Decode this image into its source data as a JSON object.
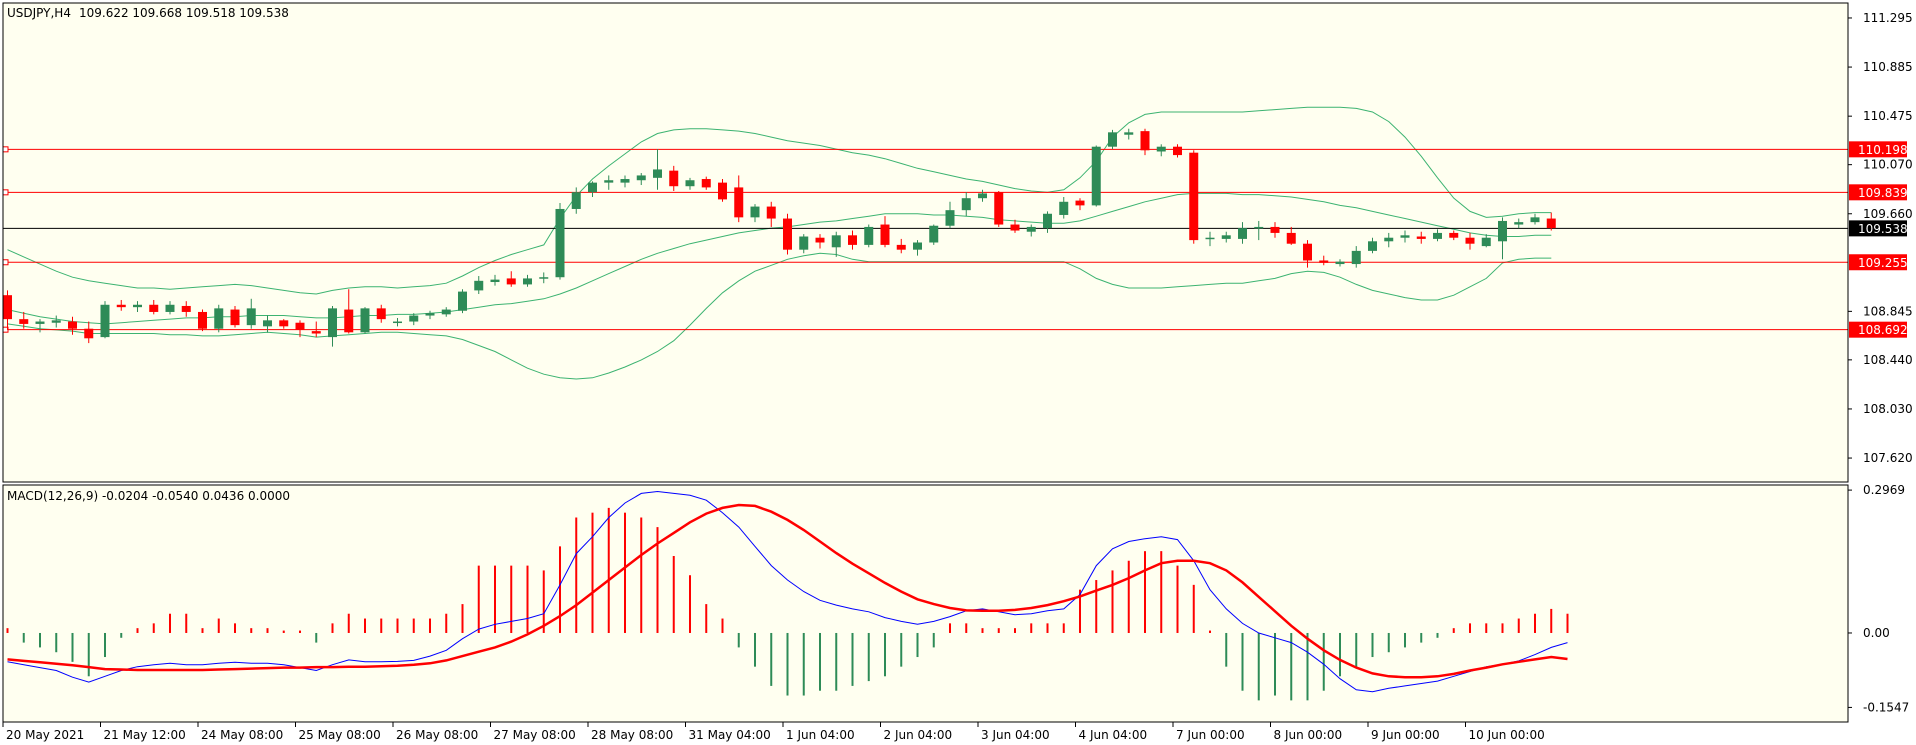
{
  "colors": {
    "background": "#fffff0",
    "frame": "#000000",
    "bull": "#2e8b57",
    "bear": "#ff0000",
    "bands": "#3cb371",
    "level_line": "#ff0000",
    "price_line": "#000000",
    "macd_main": "#0000ff",
    "macd_signal": "#ff0000"
  },
  "chart_data": [
    {
      "type": "candlestick",
      "title": "USDJPY,H4",
      "ohlc_header": "109.622 109.668 109.518 109.538",
      "ylim": [
        107.42,
        111.42
      ],
      "y_ticks": [
        "111.295",
        "110.885",
        "110.475",
        "110.070",
        "109.660",
        "108.845",
        "108.440",
        "108.030",
        "107.620"
      ],
      "current_price": "109.538",
      "horizontal_levels": [
        "110.198",
        "109.839",
        "109.255",
        "108.692"
      ],
      "x_labels": [
        "20 May 2021",
        "21 May 12:00",
        "24 May 08:00",
        "25 May 08:00",
        "26 May 08:00",
        "27 May 08:00",
        "28 May 08:00",
        "31 May 04:00",
        "1 Jun 04:00",
        "2 Jun 04:00",
        "3 Jun 04:00",
        "4 Jun 04:00",
        "7 Jun 00:00",
        "8 Jun 00:00",
        "9 Jun 00:00",
        "10 Jun 00:00"
      ],
      "candles": [
        [
          108.98,
          109.02,
          108.69,
          108.78
        ],
        [
          108.78,
          108.84,
          108.7,
          108.74
        ],
        [
          108.74,
          108.78,
          108.67,
          108.76
        ],
        [
          108.75,
          108.81,
          108.71,
          108.77
        ],
        [
          108.76,
          108.8,
          108.65,
          108.7
        ],
        [
          108.7,
          108.76,
          108.58,
          108.62
        ],
        [
          108.63,
          108.93,
          108.62,
          108.9
        ],
        [
          108.9,
          108.94,
          108.85,
          108.88
        ],
        [
          108.88,
          108.93,
          108.84,
          108.9
        ],
        [
          108.9,
          108.94,
          108.82,
          108.84
        ],
        [
          108.84,
          108.93,
          108.82,
          108.9
        ],
        [
          108.89,
          108.93,
          108.8,
          108.84
        ],
        [
          108.84,
          108.86,
          108.68,
          108.7
        ],
        [
          108.7,
          108.9,
          108.67,
          108.87
        ],
        [
          108.86,
          108.89,
          108.71,
          108.73
        ],
        [
          108.73,
          108.95,
          108.7,
          108.87
        ],
        [
          108.72,
          108.81,
          108.67,
          108.77
        ],
        [
          108.77,
          108.78,
          108.7,
          108.72
        ],
        [
          108.75,
          108.77,
          108.63,
          108.69
        ],
        [
          108.68,
          108.76,
          108.63,
          108.66
        ],
        [
          108.63,
          108.89,
          108.55,
          108.87
        ],
        [
          108.86,
          109.03,
          108.66,
          108.67
        ],
        [
          108.67,
          108.88,
          108.66,
          108.87
        ],
        [
          108.87,
          108.9,
          108.75,
          108.78
        ],
        [
          108.75,
          108.79,
          108.72,
          108.76
        ],
        [
          108.76,
          108.83,
          108.73,
          108.81
        ],
        [
          108.81,
          108.85,
          108.78,
          108.83
        ],
        [
          108.82,
          108.88,
          108.8,
          108.86
        ],
        [
          108.85,
          109.03,
          108.83,
          109.01
        ],
        [
          109.02,
          109.14,
          108.99,
          109.1
        ],
        [
          109.09,
          109.15,
          109.06,
          109.11
        ],
        [
          109.12,
          109.18,
          109.05,
          109.07
        ],
        [
          109.07,
          109.15,
          109.05,
          109.12
        ],
        [
          109.12,
          109.17,
          109.08,
          109.13
        ],
        [
          109.13,
          109.75,
          109.11,
          109.7
        ],
        [
          109.7,
          109.88,
          109.66,
          109.84
        ],
        [
          109.84,
          109.93,
          109.8,
          109.92
        ],
        [
          109.92,
          109.98,
          109.86,
          109.94
        ],
        [
          109.92,
          109.98,
          109.88,
          109.95
        ],
        [
          109.94,
          110.0,
          109.9,
          109.98
        ],
        [
          109.96,
          110.2,
          109.86,
          110.03
        ],
        [
          110.02,
          110.06,
          109.85,
          109.89
        ],
        [
          109.89,
          109.96,
          109.86,
          109.94
        ],
        [
          109.95,
          109.97,
          109.86,
          109.88
        ],
        [
          109.92,
          109.95,
          109.76,
          109.78
        ],
        [
          109.88,
          109.98,
          109.59,
          109.63
        ],
        [
          109.63,
          109.74,
          109.59,
          109.72
        ],
        [
          109.72,
          109.76,
          109.55,
          109.62
        ],
        [
          109.62,
          109.66,
          109.32,
          109.36
        ],
        [
          109.36,
          109.49,
          109.33,
          109.47
        ],
        [
          109.46,
          109.49,
          109.37,
          109.42
        ],
        [
          109.38,
          109.51,
          109.3,
          109.48
        ],
        [
          109.48,
          109.52,
          109.36,
          109.4
        ],
        [
          109.4,
          109.57,
          109.38,
          109.55
        ],
        [
          109.57,
          109.64,
          109.38,
          109.4
        ],
        [
          109.4,
          109.45,
          109.33,
          109.36
        ],
        [
          109.36,
          109.44,
          109.31,
          109.42
        ],
        [
          109.42,
          109.57,
          109.4,
          109.56
        ],
        [
          109.56,
          109.76,
          109.54,
          109.69
        ],
        [
          109.69,
          109.84,
          109.64,
          109.79
        ],
        [
          109.79,
          109.86,
          109.76,
          109.83
        ],
        [
          109.84,
          109.85,
          109.55,
          109.57
        ],
        [
          109.57,
          109.61,
          109.5,
          109.52
        ],
        [
          109.51,
          109.57,
          109.47,
          109.55
        ],
        [
          109.54,
          109.68,
          109.5,
          109.66
        ],
        [
          109.65,
          109.8,
          109.62,
          109.76
        ],
        [
          109.77,
          109.79,
          109.69,
          109.73
        ],
        [
          109.73,
          110.23,
          109.72,
          110.22
        ],
        [
          110.22,
          110.36,
          110.2,
          110.34
        ],
        [
          110.32,
          110.37,
          110.28,
          110.34
        ],
        [
          110.35,
          110.37,
          110.15,
          110.19
        ],
        [
          110.18,
          110.24,
          110.14,
          110.22
        ],
        [
          110.22,
          110.24,
          110.13,
          110.15
        ],
        [
          110.17,
          110.19,
          109.41,
          109.44
        ],
        [
          109.45,
          109.51,
          109.39,
          109.46
        ],
        [
          109.45,
          109.51,
          109.42,
          109.48
        ],
        [
          109.45,
          109.59,
          109.41,
          109.54
        ],
        [
          109.54,
          109.6,
          109.44,
          109.55
        ],
        [
          109.55,
          109.59,
          109.46,
          109.5
        ],
        [
          109.5,
          109.55,
          109.4,
          109.41
        ],
        [
          109.41,
          109.44,
          109.21,
          109.27
        ],
        [
          109.27,
          109.31,
          109.23,
          109.25
        ],
        [
          109.24,
          109.28,
          109.22,
          109.26
        ],
        [
          109.24,
          109.39,
          109.21,
          109.35
        ],
        [
          109.35,
          109.46,
          109.33,
          109.43
        ],
        [
          109.43,
          109.5,
          109.38,
          109.46
        ],
        [
          109.46,
          109.52,
          109.42,
          109.48
        ],
        [
          109.47,
          109.51,
          109.41,
          109.45
        ],
        [
          109.45,
          109.53,
          109.43,
          109.5
        ],
        [
          109.5,
          109.52,
          109.44,
          109.46
        ],
        [
          109.46,
          109.5,
          109.36,
          109.41
        ],
        [
          109.39,
          109.49,
          109.38,
          109.46
        ],
        [
          109.43,
          109.63,
          109.28,
          109.6
        ],
        [
          109.57,
          109.62,
          109.54,
          109.59
        ],
        [
          109.59,
          109.66,
          109.57,
          109.63
        ],
        [
          109.62,
          109.67,
          109.52,
          109.54
        ]
      ],
      "bollinger": {
        "upper": [
          109.36,
          109.3,
          109.24,
          109.18,
          109.13,
          109.1,
          109.08,
          109.06,
          109.04,
          109.04,
          109.03,
          109.04,
          109.05,
          109.06,
          109.07,
          109.06,
          109.04,
          109.02,
          109.0,
          108.99,
          109.02,
          109.04,
          109.05,
          109.05,
          109.04,
          109.05,
          109.06,
          109.08,
          109.14,
          109.21,
          109.27,
          109.32,
          109.36,
          109.4,
          109.62,
          109.81,
          109.95,
          110.06,
          110.16,
          110.26,
          110.33,
          110.36,
          110.37,
          110.37,
          110.36,
          110.35,
          110.33,
          110.3,
          110.27,
          110.25,
          110.23,
          110.2,
          110.17,
          110.15,
          110.12,
          110.08,
          110.04,
          110.01,
          109.98,
          109.95,
          109.93,
          109.9,
          109.87,
          109.85,
          109.84,
          109.86,
          109.96,
          110.1,
          110.3,
          110.42,
          110.49,
          110.51,
          110.51,
          110.51,
          110.51,
          110.51,
          110.51,
          110.52,
          110.53,
          110.54,
          110.55,
          110.55,
          110.55,
          110.54,
          110.51,
          110.43,
          110.3,
          110.14,
          109.96,
          109.79,
          109.68,
          109.63,
          109.64,
          109.66,
          109.67,
          109.67
        ],
        "middle": [
          108.86,
          108.83,
          108.8,
          108.78,
          108.76,
          108.75,
          108.74,
          108.75,
          108.76,
          108.77,
          108.78,
          108.79,
          108.79,
          108.8,
          108.8,
          108.81,
          108.81,
          108.81,
          108.8,
          108.79,
          108.79,
          108.8,
          108.81,
          108.81,
          108.82,
          108.82,
          108.83,
          108.84,
          108.86,
          108.88,
          108.9,
          108.91,
          108.93,
          108.95,
          108.99,
          109.04,
          109.1,
          109.16,
          109.22,
          109.28,
          109.33,
          109.37,
          109.41,
          109.44,
          109.47,
          109.5,
          109.52,
          109.54,
          109.55,
          109.57,
          109.59,
          109.6,
          109.62,
          109.64,
          109.66,
          109.66,
          109.66,
          109.65,
          109.65,
          109.64,
          109.63,
          109.61,
          109.6,
          109.59,
          109.58,
          109.58,
          109.6,
          109.64,
          109.68,
          109.72,
          109.76,
          109.79,
          109.82,
          109.83,
          109.83,
          109.83,
          109.82,
          109.82,
          109.81,
          109.8,
          109.78,
          109.76,
          109.73,
          109.71,
          109.68,
          109.65,
          109.62,
          109.59,
          109.56,
          109.53,
          109.5,
          109.48,
          109.47,
          109.47,
          109.48,
          109.48
        ],
        "lower": [
          108.74,
          108.72,
          108.7,
          108.69,
          108.68,
          108.66,
          108.66,
          108.66,
          108.66,
          108.66,
          108.65,
          108.65,
          108.64,
          108.64,
          108.65,
          108.66,
          108.67,
          108.66,
          108.65,
          108.63,
          108.64,
          108.65,
          108.66,
          108.67,
          108.67,
          108.66,
          108.65,
          108.64,
          108.61,
          108.56,
          108.51,
          108.44,
          108.37,
          108.32,
          108.29,
          108.28,
          108.29,
          108.33,
          108.38,
          108.44,
          108.51,
          108.6,
          108.73,
          108.87,
          109.0,
          109.1,
          109.18,
          109.23,
          109.28,
          109.31,
          109.33,
          109.32,
          109.28,
          109.26,
          109.26,
          109.26,
          109.26,
          109.26,
          109.26,
          109.26,
          109.26,
          109.26,
          109.26,
          109.26,
          109.26,
          109.26,
          109.2,
          109.12,
          109.07,
          109.04,
          109.04,
          109.04,
          109.05,
          109.06,
          109.07,
          109.08,
          109.08,
          109.1,
          109.12,
          109.16,
          109.18,
          109.17,
          109.13,
          109.07,
          109.02,
          108.99,
          108.96,
          108.94,
          108.94,
          108.98,
          109.05,
          109.12,
          109.25,
          109.28,
          109.29,
          109.29
        ]
      }
    },
    {
      "type": "macd",
      "title": "MACD(12,26,9) -0.0204 -0.0540 0.0436 0.0000",
      "ylim": [
        -0.185,
        0.3075
      ],
      "y_ticks": [
        "0.2969",
        "0.00",
        "-0.1547"
      ],
      "histogram": [
        0.01,
        -0.02,
        -0.03,
        -0.04,
        -0.06,
        -0.09,
        -0.05,
        -0.01,
        0.01,
        0.02,
        0.04,
        0.04,
        0.01,
        0.03,
        0.02,
        0.01,
        0.01,
        0.005,
        0.005,
        -0.02,
        0.02,
        0.04,
        0.03,
        0.03,
        0.03,
        0.03,
        0.03,
        0.04,
        0.06,
        0.14,
        0.14,
        0.14,
        0.14,
        0.13,
        0.18,
        0.24,
        0.25,
        0.26,
        0.25,
        0.24,
        0.22,
        0.16,
        0.12,
        0.06,
        0.03,
        -0.03,
        -0.07,
        -0.11,
        -0.13,
        -0.13,
        -0.12,
        -0.12,
        -0.11,
        -0.1,
        -0.09,
        -0.07,
        -0.05,
        -0.03,
        0.02,
        0.02,
        0.01,
        0.01,
        0.01,
        0.02,
        0.02,
        0.02,
        0.09,
        0.11,
        0.13,
        0.15,
        0.17,
        0.17,
        0.14,
        0.1,
        0.005,
        -0.07,
        -0.12,
        -0.14,
        -0.13,
        -0.14,
        -0.14,
        -0.12,
        -0.09,
        -0.07,
        -0.05,
        -0.04,
        -0.03,
        -0.02,
        -0.01,
        0.01,
        0.02,
        0.02,
        0.02,
        0.03,
        0.04,
        0.05,
        0.04
      ],
      "macd": [
        -0.06,
        -0.066,
        -0.072,
        -0.078,
        -0.092,
        -0.102,
        -0.09,
        -0.078,
        -0.07,
        -0.066,
        -0.063,
        -0.066,
        -0.066,
        -0.063,
        -0.061,
        -0.063,
        -0.063,
        -0.066,
        -0.072,
        -0.078,
        -0.066,
        -0.056,
        -0.06,
        -0.06,
        -0.059,
        -0.057,
        -0.048,
        -0.036,
        -0.012,
        0.008,
        0.018,
        0.024,
        0.03,
        0.04,
        0.1,
        0.165,
        0.2,
        0.24,
        0.27,
        0.29,
        0.294,
        0.29,
        0.286,
        0.276,
        0.25,
        0.22,
        0.18,
        0.14,
        0.11,
        0.086,
        0.068,
        0.058,
        0.05,
        0.044,
        0.032,
        0.024,
        0.018,
        0.024,
        0.034,
        0.046,
        0.05,
        0.044,
        0.038,
        0.04,
        0.046,
        0.05,
        0.08,
        0.14,
        0.175,
        0.19,
        0.196,
        0.2,
        0.194,
        0.15,
        0.09,
        0.05,
        0.02,
        0.0,
        -0.01,
        -0.02,
        -0.04,
        -0.065,
        -0.095,
        -0.118,
        -0.122,
        -0.115,
        -0.11,
        -0.105,
        -0.1,
        -0.09,
        -0.08,
        -0.07,
        -0.065,
        -0.058,
        -0.045,
        -0.03,
        -0.02
      ],
      "signal": [
        -0.055,
        -0.058,
        -0.061,
        -0.064,
        -0.067,
        -0.071,
        -0.075,
        -0.076,
        -0.077,
        -0.077,
        -0.077,
        -0.077,
        -0.077,
        -0.076,
        -0.075,
        -0.074,
        -0.073,
        -0.072,
        -0.072,
        -0.071,
        -0.071,
        -0.07,
        -0.07,
        -0.069,
        -0.068,
        -0.066,
        -0.063,
        -0.057,
        -0.048,
        -0.039,
        -0.03,
        -0.018,
        -0.003,
        0.015,
        0.035,
        0.058,
        0.084,
        0.11,
        0.136,
        0.162,
        0.186,
        0.208,
        0.23,
        0.248,
        0.26,
        0.266,
        0.264,
        0.252,
        0.235,
        0.214,
        0.19,
        0.166,
        0.144,
        0.124,
        0.104,
        0.086,
        0.07,
        0.06,
        0.052,
        0.047,
        0.046,
        0.046,
        0.048,
        0.052,
        0.058,
        0.066,
        0.076,
        0.088,
        0.1,
        0.114,
        0.13,
        0.145,
        0.15,
        0.15,
        0.145,
        0.13,
        0.105,
        0.075,
        0.045,
        0.015,
        -0.012,
        -0.036,
        -0.056,
        -0.072,
        -0.084,
        -0.09,
        -0.092,
        -0.092,
        -0.09,
        -0.085,
        -0.078,
        -0.072,
        -0.065,
        -0.06,
        -0.055,
        -0.05,
        -0.054
      ]
    }
  ]
}
